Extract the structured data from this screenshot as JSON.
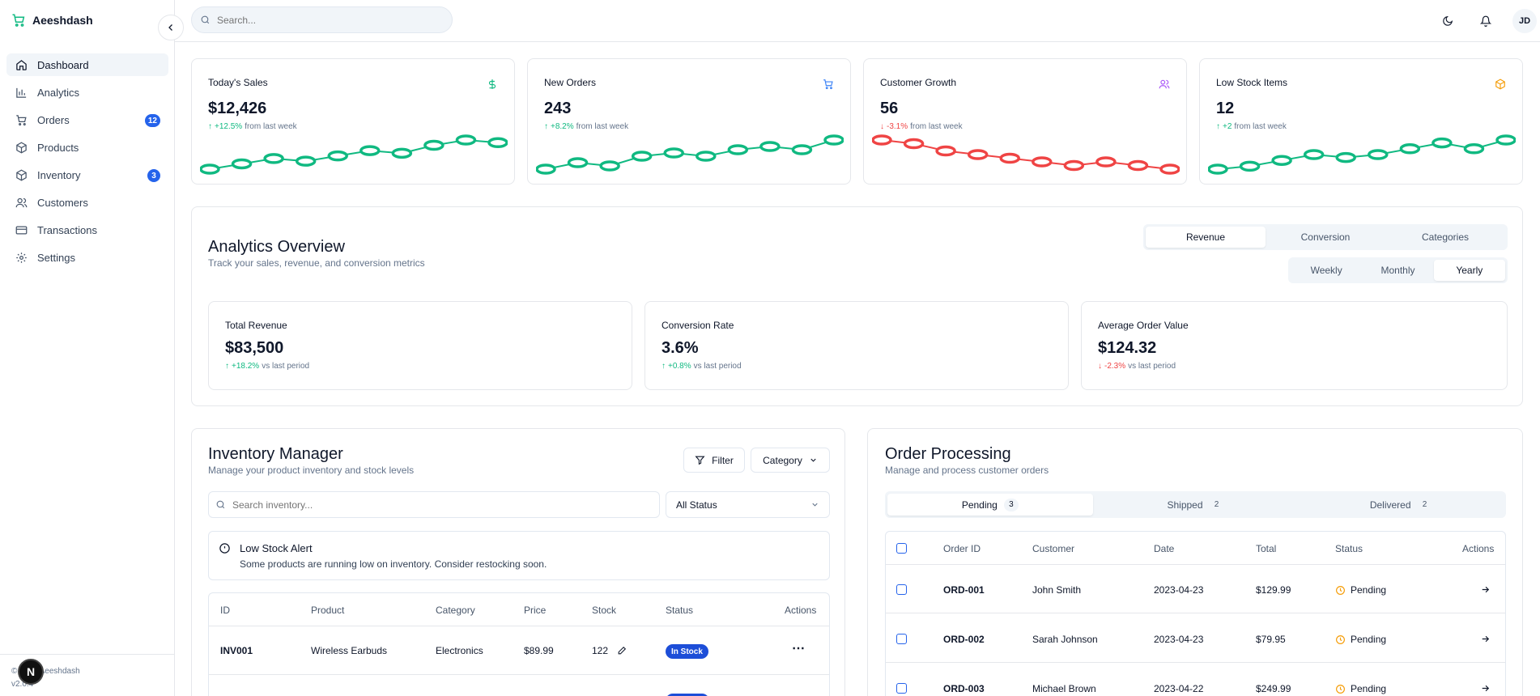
{
  "app": {
    "name": "Aeeshdash",
    "copyright": "© 2025 Aeeshdash",
    "version": "v2.0.4",
    "next_badge": "N"
  },
  "sidebar": {
    "items": [
      {
        "label": "Dashboard",
        "icon": "home-icon",
        "active": true,
        "badge": ""
      },
      {
        "label": "Analytics",
        "icon": "bar-chart-icon",
        "active": false,
        "badge": ""
      },
      {
        "label": "Orders",
        "icon": "cart-icon",
        "active": false,
        "badge": "12"
      },
      {
        "label": "Products",
        "icon": "box-icon",
        "active": false,
        "badge": ""
      },
      {
        "label": "Inventory",
        "icon": "box-icon",
        "active": false,
        "badge": "3"
      },
      {
        "label": "Customers",
        "icon": "users-icon",
        "active": false,
        "badge": ""
      },
      {
        "label": "Transactions",
        "icon": "credit-card-icon",
        "active": false,
        "badge": ""
      },
      {
        "label": "Settings",
        "icon": "gear-icon",
        "active": false,
        "badge": ""
      }
    ]
  },
  "topbar": {
    "search_placeholder": "Search...",
    "avatar": "JD"
  },
  "stats": [
    {
      "title": "Today's Sales",
      "value": "$12,426",
      "change": "+12.5%",
      "suffix": "from last week",
      "direction": "up",
      "icon": "dollar-icon",
      "icon_color": "#10b981",
      "line_color": "#10b981",
      "trend": [
        2,
        4,
        6,
        5,
        7,
        9,
        8,
        11,
        13,
        12
      ]
    },
    {
      "title": "New Orders",
      "value": "243",
      "change": "+8.2%",
      "suffix": "from last week",
      "direction": "up",
      "icon": "cart-icon",
      "icon_color": "#3b82f6",
      "line_color": "#10b981",
      "trend": [
        3,
        5,
        4,
        7,
        8,
        7,
        9,
        10,
        9,
        12
      ]
    },
    {
      "title": "Customer Growth",
      "value": "56",
      "change": "-3.1%",
      "suffix": "from last week",
      "direction": "down",
      "icon": "users-icon",
      "icon_color": "#a855f7",
      "line_color": "#ef4444",
      "trend": [
        12,
        11,
        9,
        8,
        7,
        6,
        5,
        6,
        5,
        4
      ]
    },
    {
      "title": "Low Stock Items",
      "value": "12",
      "change": "+2",
      "suffix": "from last week",
      "direction": "up",
      "icon": "box-icon",
      "icon_color": "#f59e0b",
      "line_color": "#10b981",
      "trend": [
        2,
        3,
        5,
        7,
        6,
        7,
        9,
        11,
        9,
        12
      ]
    }
  ],
  "analytics": {
    "title": "Analytics Overview",
    "subtitle": "Track your sales, revenue, and conversion metrics",
    "tabs": [
      "Revenue",
      "Conversion",
      "Categories"
    ],
    "active_tab": 0,
    "periods": [
      "Weekly",
      "Monthly",
      "Yearly"
    ],
    "active_period": 2,
    "metrics": [
      {
        "title": "Total Revenue",
        "value": "$83,500",
        "change": "+18.2%",
        "suffix": "vs last period",
        "direction": "up"
      },
      {
        "title": "Conversion Rate",
        "value": "3.6%",
        "change": "+0.8%",
        "suffix": "vs last period",
        "direction": "up"
      },
      {
        "title": "Average Order Value",
        "value": "$124.32",
        "change": "-2.3%",
        "suffix": "vs last period",
        "direction": "down"
      }
    ]
  },
  "inventory": {
    "title": "Inventory Manager",
    "subtitle": "Manage your product inventory and stock levels",
    "filter_label": "Filter",
    "category_label": "Category",
    "search_placeholder": "Search inventory...",
    "status_select": "All Status",
    "alert_title": "Low Stock Alert",
    "alert_text": "Some products are running low on inventory. Consider restocking soon.",
    "columns": [
      "ID",
      "Product",
      "Category",
      "Price",
      "Stock",
      "Status",
      "Actions"
    ],
    "rows": [
      {
        "id": "INV001",
        "product": "Wireless Earbuds",
        "category": "Electronics",
        "price": "$89.99",
        "stock": "122",
        "status": "In Stock"
      }
    ]
  },
  "orders": {
    "title": "Order Processing",
    "subtitle": "Manage and process customer orders",
    "tabs": [
      {
        "label": "Pending",
        "count": "3"
      },
      {
        "label": "Shipped",
        "count": "2"
      },
      {
        "label": "Delivered",
        "count": "2"
      }
    ],
    "active_tab": 0,
    "columns": [
      "Order ID",
      "Customer",
      "Date",
      "Total",
      "Status",
      "Actions"
    ],
    "rows": [
      {
        "id": "ORD-001",
        "customer": "John Smith",
        "date": "2023-04-23",
        "total": "$129.99",
        "status": "Pending"
      },
      {
        "id": "ORD-002",
        "customer": "Sarah Johnson",
        "date": "2023-04-23",
        "total": "$79.95",
        "status": "Pending"
      },
      {
        "id": "ORD-003",
        "customer": "Michael Brown",
        "date": "2023-04-22",
        "total": "$249.99",
        "status": "Pending"
      }
    ]
  }
}
